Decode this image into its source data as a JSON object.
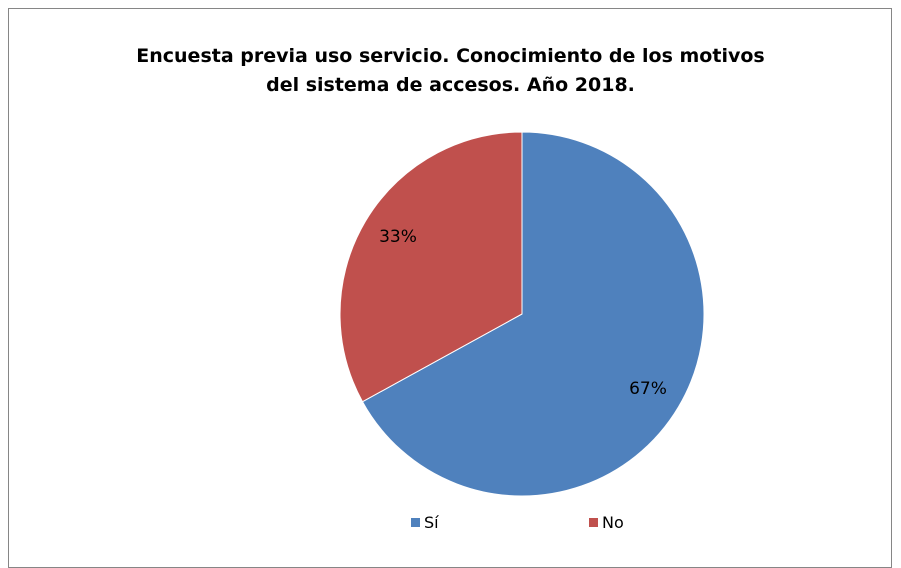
{
  "chart_data": {
    "type": "pie",
    "title_lines": [
      "Encuesta previa uso servicio. Conocimiento de los motivos",
      "del sistema de accesos. Año 2018."
    ],
    "categories": [
      "Sí",
      "No"
    ],
    "values": [
      67,
      33
    ],
    "data_labels": [
      "67%",
      "33%"
    ],
    "colors": [
      "#4F81BD",
      "#C0504D"
    ],
    "legend_position": "bottom"
  }
}
